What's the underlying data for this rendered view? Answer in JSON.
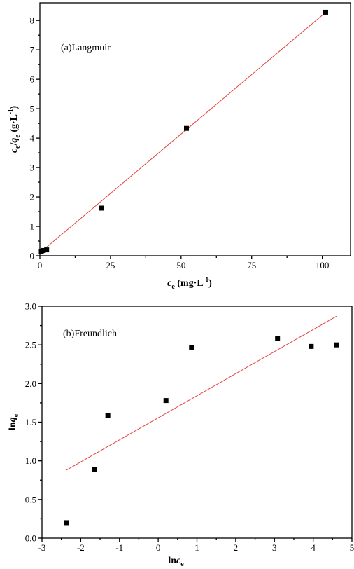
{
  "chart_data": [
    {
      "type": "scatter",
      "panel_label": "(a)Langmuir",
      "xlabel": {
        "main": "c",
        "sub": "e",
        "unit": " (mg·L",
        "sup": "-1",
        "close": ")"
      },
      "ylabel": {
        "a": "c",
        "a_sub": "e",
        "slash": "/",
        "b": "q",
        "b_sub": "e",
        "unit": " (g·L",
        "sup": "-1",
        "close": ")"
      },
      "xlim": [
        0,
        110
      ],
      "ylim": [
        0,
        8.6
      ],
      "xticks": [
        0,
        25,
        50,
        75,
        100
      ],
      "yticks": [
        0,
        1,
        2,
        3,
        4,
        5,
        6,
        7,
        8
      ],
      "points": [
        {
          "x": 0.5,
          "y": 0.15
        },
        {
          "x": 1.2,
          "y": 0.18
        },
        {
          "x": 2.4,
          "y": 0.2
        },
        {
          "x": 21.8,
          "y": 1.62
        },
        {
          "x": 51.9,
          "y": 4.33
        },
        {
          "x": 101.2,
          "y": 8.28
        }
      ],
      "fit_line": {
        "x": [
          0,
          101.5
        ],
        "y": [
          0.1,
          8.3
        ]
      },
      "marker_color": "#000000",
      "line_color": "#e8413a"
    },
    {
      "type": "scatter",
      "panel_label": "(b)Freundlich",
      "xlabel": {
        "main": "ln",
        "italic": "c",
        "sub": "e"
      },
      "ylabel": {
        "main": "ln",
        "italic": "q",
        "sub": "e"
      },
      "xlim": [
        -3,
        5
      ],
      "ylim": [
        0,
        3.0
      ],
      "xticks": [
        -3,
        -2,
        -1,
        0,
        1,
        2,
        3,
        4,
        5
      ],
      "yticks": [
        "0.0",
        "0.5",
        "1.0",
        "1.5",
        "2.0",
        "2.5",
        "3.0"
      ],
      "points": [
        {
          "x": -2.37,
          "y": 0.2
        },
        {
          "x": -1.65,
          "y": 0.89
        },
        {
          "x": -1.3,
          "y": 1.59
        },
        {
          "x": 0.2,
          "y": 1.78
        },
        {
          "x": 0.86,
          "y": 2.47
        },
        {
          "x": 3.08,
          "y": 2.58
        },
        {
          "x": 3.95,
          "y": 2.48
        },
        {
          "x": 4.6,
          "y": 2.5
        }
      ],
      "fit_line": {
        "x": [
          -2.37,
          4.6
        ],
        "y": [
          0.88,
          2.87
        ]
      },
      "marker_color": "#000000",
      "line_color": "#e8413a"
    }
  ]
}
